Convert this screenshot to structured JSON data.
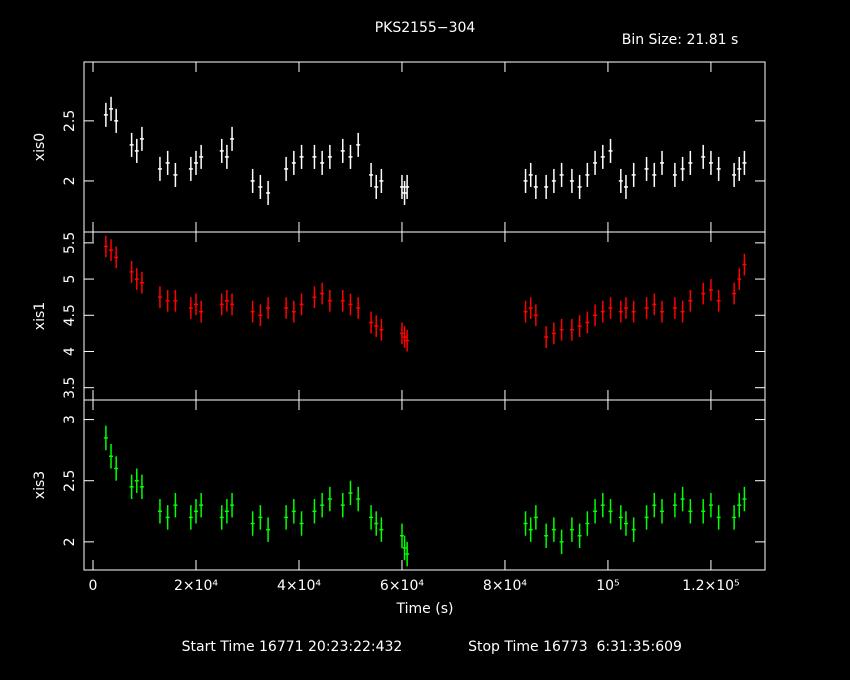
{
  "chart_data": [
    {
      "type": "scatter",
      "title": "PKS2155−304",
      "annotation": "Bin Size: 21.81 s",
      "ylabel": "xis0",
      "color": "#ffffff",
      "x": [
        2500,
        3500,
        4500,
        7500,
        8500,
        9500,
        13000,
        14500,
        16000,
        19000,
        20000,
        21000,
        25000,
        26000,
        27000,
        31000,
        32500,
        34000,
        37500,
        39000,
        40500,
        43000,
        44500,
        46000,
        48500,
        50000,
        51500,
        54000,
        55000,
        56000,
        60000,
        60500,
        61000,
        84000,
        85000,
        86000,
        88000,
        89500,
        91000,
        93000,
        94500,
        96000,
        97500,
        99000,
        100500,
        102500,
        103500,
        105000,
        107500,
        109000,
        110500,
        113000,
        114500,
        116000,
        118500,
        120000,
        121500,
        124500,
        125500,
        126500
      ],
      "values": [
        2.55,
        2.6,
        2.5,
        2.3,
        2.25,
        2.35,
        2.1,
        2.15,
        2.05,
        2.1,
        2.15,
        2.2,
        2.25,
        2.2,
        2.35,
        2.0,
        1.95,
        1.9,
        2.1,
        2.15,
        2.2,
        2.2,
        2.15,
        2.2,
        2.25,
        2.2,
        2.3,
        2.05,
        1.95,
        2.0,
        1.95,
        1.9,
        1.95,
        2.0,
        2.05,
        1.95,
        1.95,
        2.0,
        2.05,
        2.0,
        1.95,
        2.05,
        2.15,
        2.2,
        2.25,
        2.0,
        1.95,
        2.05,
        2.1,
        2.05,
        2.15,
        2.05,
        2.1,
        2.15,
        2.2,
        2.15,
        2.1,
        2.05,
        2.1,
        2.15
      ],
      "error": 0.1,
      "xlim": [
        -1750,
        130500
      ],
      "ylim": [
        1.575,
        2.99
      ],
      "yticks": [
        2,
        2.5
      ]
    },
    {
      "type": "scatter",
      "ylabel": "xis1",
      "color": "#ff0000",
      "x": [
        2500,
        3500,
        4500,
        7500,
        8500,
        9500,
        13000,
        14500,
        16000,
        19000,
        20000,
        21000,
        25000,
        26000,
        27000,
        31000,
        32500,
        34000,
        37500,
        39000,
        40500,
        43000,
        44500,
        46000,
        48500,
        50000,
        51500,
        54000,
        55000,
        56000,
        60000,
        60500,
        61000,
        84000,
        85000,
        86000,
        88000,
        89500,
        91000,
        93000,
        94500,
        96000,
        97500,
        99000,
        100500,
        102500,
        103500,
        105000,
        107500,
        109000,
        110500,
        113000,
        114500,
        116000,
        118500,
        120000,
        121500,
        124500,
        125500,
        126500
      ],
      "values": [
        5.45,
        5.4,
        5.3,
        5.1,
        5.0,
        4.95,
        4.75,
        4.7,
        4.7,
        4.6,
        4.65,
        4.55,
        4.65,
        4.7,
        4.65,
        4.55,
        4.5,
        4.6,
        4.6,
        4.55,
        4.65,
        4.75,
        4.8,
        4.7,
        4.7,
        4.65,
        4.6,
        4.4,
        4.35,
        4.3,
        4.25,
        4.2,
        4.15,
        4.55,
        4.6,
        4.5,
        4.2,
        4.25,
        4.3,
        4.3,
        4.35,
        4.4,
        4.5,
        4.55,
        4.6,
        4.55,
        4.6,
        4.55,
        4.6,
        4.65,
        4.55,
        4.6,
        4.55,
        4.7,
        4.8,
        4.85,
        4.7,
        4.8,
        5.0,
        5.2
      ],
      "error": 0.15,
      "xlim": [
        -1750,
        130500
      ],
      "ylim": [
        3.33,
        5.65
      ],
      "yticks": [
        3.5,
        4,
        4.5,
        5,
        5.5
      ]
    },
    {
      "type": "scatter",
      "ylabel": "xis3",
      "color": "#00ff00",
      "xlabel": "Time (s)",
      "annotations": [
        "Start Time 16771 20:23:22:432",
        "Stop Time 16773  6:31:35:609"
      ],
      "x": [
        2500,
        3500,
        4500,
        7500,
        8500,
        9500,
        13000,
        14500,
        16000,
        19000,
        20000,
        21000,
        25000,
        26000,
        27000,
        31000,
        32500,
        34000,
        37500,
        39000,
        40500,
        43000,
        44500,
        46000,
        48500,
        50000,
        51500,
        54000,
        55000,
        56000,
        60000,
        60500,
        61000,
        84000,
        85000,
        86000,
        88000,
        89500,
        91000,
        93000,
        94500,
        96000,
        97500,
        99000,
        100500,
        102500,
        103500,
        105000,
        107500,
        109000,
        110500,
        113000,
        114500,
        116000,
        118500,
        120000,
        121500,
        124500,
        125500,
        126500
      ],
      "values": [
        2.85,
        2.7,
        2.6,
        2.45,
        2.5,
        2.45,
        2.25,
        2.2,
        2.3,
        2.2,
        2.25,
        2.3,
        2.2,
        2.25,
        2.3,
        2.15,
        2.2,
        2.1,
        2.2,
        2.25,
        2.15,
        2.25,
        2.3,
        2.35,
        2.3,
        2.4,
        2.35,
        2.2,
        2.15,
        2.1,
        2.05,
        1.95,
        1.9,
        2.15,
        2.1,
        2.2,
        2.05,
        2.1,
        2.0,
        2.1,
        2.05,
        2.15,
        2.25,
        2.3,
        2.25,
        2.2,
        2.15,
        2.1,
        2.2,
        2.3,
        2.25,
        2.3,
        2.35,
        2.25,
        2.25,
        2.3,
        2.2,
        2.2,
        2.3,
        2.35
      ],
      "error": 0.1,
      "xlim": [
        -1750,
        130500
      ],
      "ylim": [
        1.77,
        3.16
      ],
      "yticks": [
        2,
        2.5,
        3
      ],
      "xticks": [
        0,
        {
          "value": 20000,
          "label": "2×10⁴"
        },
        {
          "value": 40000,
          "label": "4×10⁴"
        },
        {
          "value": 60000,
          "label": "6×10⁴"
        },
        {
          "value": 80000,
          "label": "8×10⁴"
        },
        {
          "value": 100000,
          "label": "10⁵"
        },
        {
          "value": 120000,
          "label": "1.2×10⁵"
        }
      ]
    }
  ]
}
